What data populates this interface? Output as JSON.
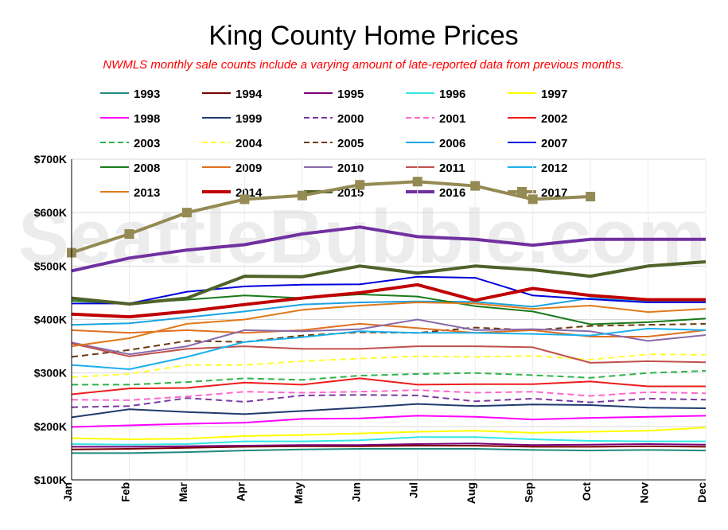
{
  "chart_data": {
    "type": "line",
    "title": "King County Home Prices",
    "subtitle": "NWMLS monthly sale counts include a varying amount of late-reported  data from previous months.",
    "watermark": "SeattleBubble.com",
    "xlabel": "",
    "ylabel": "",
    "categories": [
      "Jan",
      "Feb",
      "Mar",
      "Apr",
      "May",
      "Jun",
      "Jul",
      "Aug",
      "Sep",
      "Oct",
      "Nov",
      "Dec"
    ],
    "ylim": [
      100000,
      700000
    ],
    "yticks": [
      {
        "value": 100000,
        "label": "$100K"
      },
      {
        "value": 200000,
        "label": "$200K"
      },
      {
        "value": 300000,
        "label": "$300K"
      },
      {
        "value": 400000,
        "label": "$400K"
      },
      {
        "value": 500000,
        "label": "$500K"
      },
      {
        "value": 600000,
        "label": "$600K"
      },
      {
        "value": 700000,
        "label": "$700K"
      }
    ],
    "grid": true,
    "legend_position": "top",
    "series": [
      {
        "name": "1993",
        "color": "#1f8a7e",
        "dash": "solid",
        "width": 2,
        "values": [
          150000,
          150000,
          152000,
          155000,
          157000,
          158000,
          158000,
          158000,
          156000,
          155000,
          156000,
          155000
        ]
      },
      {
        "name": "1994",
        "color": "#7a0000",
        "dash": "solid",
        "width": 2,
        "values": [
          157000,
          158000,
          160000,
          162000,
          163000,
          163000,
          164000,
          164000,
          162000,
          162000,
          163000,
          162000
        ]
      },
      {
        "name": "1995",
        "color": "#7a007a",
        "dash": "solid",
        "width": 2,
        "values": [
          162000,
          162000,
          163000,
          164000,
          165000,
          165000,
          167000,
          168000,
          165000,
          166000,
          167000,
          166000
        ]
      },
      {
        "name": "1996",
        "color": "#33e6e6",
        "dash": "solid",
        "width": 2,
        "values": [
          167000,
          166000,
          167000,
          172000,
          172000,
          174000,
          180000,
          180000,
          176000,
          173000,
          172000,
          172000
        ]
      },
      {
        "name": "1997",
        "color": "#ffff00",
        "dash": "solid",
        "width": 2,
        "values": [
          178000,
          176000,
          177000,
          182000,
          184000,
          187000,
          190000,
          192000,
          188000,
          190000,
          192000,
          198000
        ]
      },
      {
        "name": "1998",
        "color": "#ff00ff",
        "dash": "solid",
        "width": 2,
        "values": [
          199000,
          202000,
          205000,
          207000,
          214000,
          215000,
          220000,
          218000,
          213000,
          216000,
          218000,
          220000
        ]
      },
      {
        "name": "1999",
        "color": "#1f3a6e",
        "dash": "solid",
        "width": 2,
        "values": [
          217000,
          232000,
          227000,
          223000,
          229000,
          235000,
          242000,
          238000,
          241000,
          240000,
          235000,
          234000
        ]
      },
      {
        "name": "2000",
        "color": "#7a3aa0",
        "dash": "dash",
        "width": 2,
        "values": [
          236000,
          238000,
          253000,
          246000,
          258000,
          259000,
          258000,
          247000,
          252000,
          245000,
          252000,
          250000
        ]
      },
      {
        "name": "2001",
        "color": "#ff66cc",
        "dash": "dash",
        "width": 2,
        "values": [
          250000,
          249000,
          256000,
          265000,
          263000,
          265000,
          268000,
          263000,
          265000,
          257000,
          264000,
          262000
        ]
      },
      {
        "name": "2002",
        "color": "#ee1c1c",
        "dash": "solid",
        "width": 2,
        "values": [
          260000,
          271000,
          272000,
          282000,
          278000,
          290000,
          278000,
          279000,
          279000,
          284000,
          275000,
          275000
        ]
      },
      {
        "name": "2003",
        "color": "#2db34a",
        "dash": "dash",
        "width": 2,
        "values": [
          278000,
          278000,
          283000,
          290000,
          287000,
          295000,
          298000,
          300000,
          296000,
          291000,
          300000,
          304000
        ]
      },
      {
        "name": "2004",
        "color": "#ffff33",
        "dash": "dash",
        "width": 2,
        "values": [
          292000,
          298000,
          315000,
          315000,
          322000,
          327000,
          331000,
          330000,
          332000,
          325000,
          335000,
          334000
        ]
      },
      {
        "name": "2005",
        "color": "#6b3a10",
        "dash": "dash",
        "width": 2,
        "values": [
          330000,
          343000,
          360000,
          358000,
          370000,
          376000,
          375000,
          385000,
          380000,
          388000,
          390000,
          392000
        ]
      },
      {
        "name": "2006",
        "color": "#1aa3e0",
        "dash": "solid",
        "width": 2,
        "values": [
          390000,
          393000,
          404000,
          415000,
          428000,
          432000,
          434000,
          433000,
          424000,
          440000,
          433000,
          435000
        ]
      },
      {
        "name": "2007",
        "color": "#0000dd",
        "dash": "solid",
        "width": 2,
        "values": [
          430000,
          430000,
          452000,
          462000,
          465000,
          466000,
          480000,
          478000,
          445000,
          438000,
          432000,
          432000
        ]
      },
      {
        "name": "2008",
        "color": "#1a7a1a",
        "dash": "solid",
        "width": 2,
        "values": [
          435000,
          430000,
          437000,
          445000,
          440000,
          447000,
          443000,
          425000,
          415000,
          391000,
          395000,
          402000
        ]
      },
      {
        "name": "2009",
        "color": "#e07020",
        "dash": "solid",
        "width": 2,
        "values": [
          380000,
          375000,
          380000,
          375000,
          380000,
          392000,
          384000,
          375000,
          380000,
          368000,
          368000,
          380000
        ]
      },
      {
        "name": "2010",
        "color": "#8a6aaa",
        "dash": "solid",
        "width": 2,
        "values": [
          357000,
          335000,
          350000,
          380000,
          378000,
          382000,
          400000,
          380000,
          382000,
          378000,
          360000,
          371000
        ]
      },
      {
        "name": "2011",
        "color": "#c0504d",
        "dash": "solid",
        "width": 2,
        "values": [
          355000,
          331000,
          345000,
          350000,
          345000,
          345000,
          350000,
          350000,
          348000,
          319000,
          322000,
          320000
        ]
      },
      {
        "name": "2012",
        "color": "#1ab0ee",
        "dash": "solid",
        "width": 2,
        "values": [
          315000,
          307000,
          330000,
          358000,
          367000,
          378000,
          375000,
          375000,
          373000,
          370000,
          383000,
          380000
        ]
      },
      {
        "name": "2013",
        "color": "#e07a1a",
        "dash": "solid",
        "width": 2,
        "values": [
          350000,
          365000,
          392000,
          400000,
          418000,
          426000,
          432000,
          430000,
          420000,
          426000,
          414000,
          420000
        ]
      },
      {
        "name": "2014",
        "color": "#c00000",
        "dash": "solid",
        "width": 4,
        "values": [
          410000,
          405000,
          415000,
          428000,
          440000,
          450000,
          465000,
          436000,
          458000,
          445000,
          437000,
          437000
        ]
      },
      {
        "name": "2015",
        "color": "#4f6228",
        "dash": "solid",
        "width": 4,
        "values": [
          440000,
          429000,
          440000,
          481000,
          480000,
          500000,
          487000,
          500000,
          493000,
          481000,
          500000,
          508000
        ]
      },
      {
        "name": "2016",
        "color": "#7030a0",
        "dash": "solid",
        "width": 4,
        "values": [
          491000,
          515000,
          530000,
          540000,
          560000,
          573000,
          555000,
          550000,
          539000,
          550000,
          550000,
          550000
        ]
      },
      {
        "name": "2017",
        "color": "#948a54",
        "dash": "solid",
        "width": 4,
        "marker": "square",
        "values": [
          525000,
          560000,
          600000,
          625000,
          632000,
          652000,
          658000,
          650000,
          625000,
          630000,
          null,
          null
        ]
      }
    ]
  }
}
